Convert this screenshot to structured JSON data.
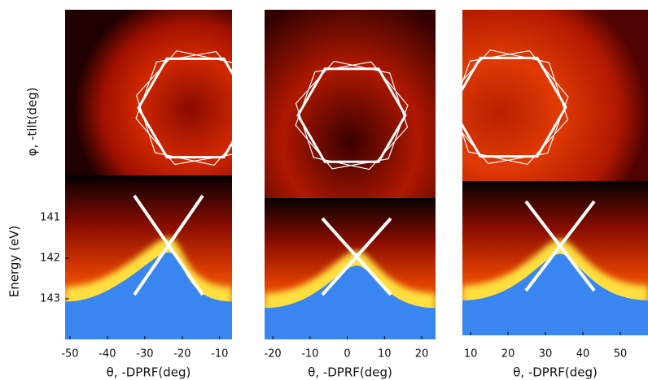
{
  "y_axis_labels": {
    "top": "φ, -tilt(deg)",
    "bottom": "Energy (eV)"
  },
  "energy_axis": {
    "ylim": [
      140,
      144
    ],
    "yticks": [
      141,
      142,
      143
    ]
  },
  "panels": [
    {
      "xlabel": "θ, -DPRF(deg)",
      "xlim": [
        -51.3,
        -6.7
      ],
      "xticks": [
        -50,
        -40,
        -30,
        -20,
        -10
      ]
    },
    {
      "xlabel": "θ, -DPRF(deg)",
      "xlim": [
        -22.2,
        23.7
      ],
      "xticks": [
        -20,
        -10,
        0,
        10,
        20
      ]
    },
    {
      "xlabel": "θ, -DPRF(deg)",
      "xlim": [
        7.8,
        57.4
      ],
      "xticks": [
        10,
        20,
        30,
        40,
        50
      ]
    }
  ]
}
